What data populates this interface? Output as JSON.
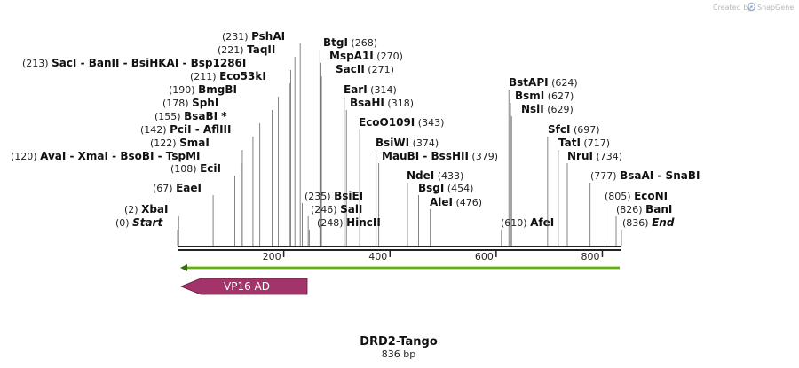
{
  "header": {
    "credit_prefix": "Created by",
    "credit_app": "SnapGene"
  },
  "map": {
    "title": "DRD2-Tango",
    "length_label": "836 bp",
    "total_bp": 836,
    "axis_ticks": [
      {
        "bp": 200,
        "label": "200"
      },
      {
        "bp": 400,
        "label": "400"
      },
      {
        "bp": 600,
        "label": "600"
      },
      {
        "bp": 800,
        "label": "800"
      }
    ]
  },
  "enzymes": [
    {
      "name": "PshAI",
      "pos": 231,
      "pos_label": "(231)"
    },
    {
      "name": "TaqII",
      "pos": 221,
      "pos_label": "(221)"
    },
    {
      "name": "SacI - BanII - BsiHKAI - Bsp1286I",
      "pos": 213,
      "pos_label": "(213)"
    },
    {
      "name": "Eco53kI",
      "pos": 211,
      "pos_label": "(211)"
    },
    {
      "name": "BmgBI",
      "pos": 190,
      "pos_label": "(190)"
    },
    {
      "name": "SphI",
      "pos": 178,
      "pos_label": "(178)"
    },
    {
      "name": "BsaBI *",
      "pos": 155,
      "pos_label": "(155)"
    },
    {
      "name": "PciI - AflIII",
      "pos": 142,
      "pos_label": "(142)"
    },
    {
      "name": "SmaI",
      "pos": 122,
      "pos_label": "(122)"
    },
    {
      "name": "AvaI - XmaI - BsoBI - TspMI",
      "pos": 120,
      "pos_label": "(120)"
    },
    {
      "name": "EciI",
      "pos": 108,
      "pos_label": "(108)"
    },
    {
      "name": "EaeI",
      "pos": 67,
      "pos_label": "(67)"
    },
    {
      "name": "XbaI",
      "pos": 2,
      "pos_label": "(2)"
    },
    {
      "name": "Start",
      "pos": 0,
      "pos_label": "(0)",
      "italic": true
    },
    {
      "name": "BtgI",
      "pos": 268,
      "pos_label": "(268)"
    },
    {
      "name": "MspA1I",
      "pos": 270,
      "pos_label": "(270)"
    },
    {
      "name": "SacII",
      "pos": 271,
      "pos_label": "(271)"
    },
    {
      "name": "EarI",
      "pos": 314,
      "pos_label": "(314)"
    },
    {
      "name": "BsaHI",
      "pos": 318,
      "pos_label": "(318)"
    },
    {
      "name": "EcoO109I",
      "pos": 343,
      "pos_label": "(343)"
    },
    {
      "name": "BsiWI",
      "pos": 374,
      "pos_label": "(374)"
    },
    {
      "name": "MauBI - BssHII",
      "pos": 379,
      "pos_label": "(379)"
    },
    {
      "name": "BsiEI",
      "pos": 235,
      "pos_label": "(235)"
    },
    {
      "name": "SalI",
      "pos": 246,
      "pos_label": "(246)"
    },
    {
      "name": "HincII",
      "pos": 248,
      "pos_label": "(248)"
    },
    {
      "name": "NdeI",
      "pos": 433,
      "pos_label": "(433)"
    },
    {
      "name": "BsgI",
      "pos": 454,
      "pos_label": "(454)"
    },
    {
      "name": "AleI",
      "pos": 476,
      "pos_label": "(476)"
    },
    {
      "name": "BstAPI",
      "pos": 624,
      "pos_label": "(624)"
    },
    {
      "name": "BsmI",
      "pos": 627,
      "pos_label": "(627)"
    },
    {
      "name": "NsiI",
      "pos": 629,
      "pos_label": "(629)"
    },
    {
      "name": "AfeI",
      "pos": 610,
      "pos_label": "(610)"
    },
    {
      "name": "SfcI",
      "pos": 697,
      "pos_label": "(697)"
    },
    {
      "name": "TatI",
      "pos": 717,
      "pos_label": "(717)"
    },
    {
      "name": "NruI",
      "pos": 734,
      "pos_label": "(734)"
    },
    {
      "name": "BsaAI - SnaBI",
      "pos": 777,
      "pos_label": "(777)"
    },
    {
      "name": "EcoNI",
      "pos": 805,
      "pos_label": "(805)"
    },
    {
      "name": "BanI",
      "pos": 826,
      "pos_label": "(826)"
    },
    {
      "name": "End",
      "pos": 836,
      "pos_label": "(836)",
      "italic": true
    }
  ],
  "features": [
    {
      "name": "VP16 AD",
      "start": 1,
      "end": 242,
      "direction": "reverse",
      "color": "#a3346a"
    },
    {
      "name": "",
      "start": 1,
      "end": 836,
      "direction": "reverse",
      "color": "#7ed321",
      "kind": "orf"
    }
  ],
  "colors": {
    "backbone": "#222222",
    "tick_line": "#555555"
  }
}
